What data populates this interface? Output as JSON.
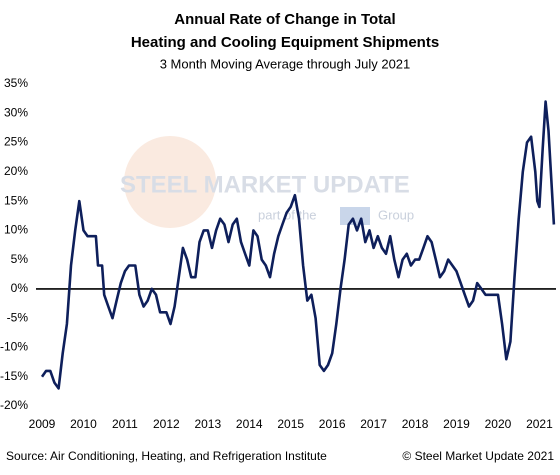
{
  "chart_data": {
    "type": "line",
    "title": [
      "Annual Rate of Change in Total",
      "Heating and Cooling Equipment Shipments"
    ],
    "subtitle": "3 Month Moving Average through July 2021",
    "source": "Source: Air Conditioning, Heating, and Refrigeration Institute",
    "copyright": "© Steel Market Update 2021",
    "watermark": {
      "brand": "STEEL MARKET UPDATE",
      "tagline_pre": "part of the",
      "tagline_post": "Group"
    },
    "color": "#0e1f5b",
    "zero_line": true,
    "grid": false,
    "x": [
      2009.0,
      2009.1,
      2009.2,
      2009.3,
      2009.4,
      2009.5,
      2009.6,
      2009.7,
      2009.8,
      2009.9,
      2010.0,
      2010.1,
      2010.2,
      2010.3,
      2010.35,
      2010.45,
      2010.5,
      2010.6,
      2010.7,
      2010.8,
      2010.9,
      2011.0,
      2011.1,
      2011.25,
      2011.35,
      2011.45,
      2011.55,
      2011.65,
      2011.75,
      2011.85,
      2012.0,
      2012.1,
      2012.2,
      2012.3,
      2012.4,
      2012.5,
      2012.6,
      2012.7,
      2012.8,
      2012.9,
      2013.0,
      2013.1,
      2013.2,
      2013.3,
      2013.4,
      2013.5,
      2013.6,
      2013.7,
      2013.8,
      2013.9,
      2014.0,
      2014.1,
      2014.2,
      2014.3,
      2014.4,
      2014.5,
      2014.6,
      2014.7,
      2014.8,
      2014.9,
      2015.0,
      2015.1,
      2015.2,
      2015.3,
      2015.4,
      2015.5,
      2015.6,
      2015.7,
      2015.8,
      2015.9,
      2016.0,
      2016.1,
      2016.2,
      2016.3,
      2016.4,
      2016.5,
      2016.6,
      2016.7,
      2016.8,
      2016.9,
      2017.0,
      2017.1,
      2017.2,
      2017.3,
      2017.4,
      2017.5,
      2017.6,
      2017.7,
      2017.8,
      2017.9,
      2018.0,
      2018.1,
      2018.2,
      2018.3,
      2018.4,
      2018.5,
      2018.6,
      2018.7,
      2018.8,
      2018.9,
      2019.0,
      2019.1,
      2019.2,
      2019.3,
      2019.4,
      2019.5,
      2019.6,
      2019.7,
      2019.8,
      2019.9,
      2020.0,
      2020.1,
      2020.2,
      2020.3,
      2020.4,
      2020.5,
      2020.6,
      2020.7,
      2020.8,
      2020.9,
      2020.95,
      2021.0,
      2021.08,
      2021.15,
      2021.22,
      2021.35
    ],
    "values": [
      -15,
      -14,
      -14,
      -16,
      -17,
      -11,
      -6,
      4,
      10,
      15,
      10,
      9,
      9,
      9,
      4,
      4,
      -1,
      -3,
      -5,
      -2,
      1,
      3,
      4,
      4,
      -1,
      -3,
      -2,
      0,
      -1,
      -4,
      -4,
      -6,
      -3,
      2,
      7,
      5,
      2,
      2,
      8,
      10,
      10,
      7,
      10,
      12,
      11,
      8,
      11,
      12,
      8,
      6,
      4,
      10,
      9,
      5,
      4,
      2,
      6,
      9,
      11,
      13,
      14,
      16,
      12,
      4,
      -2,
      -1,
      -5,
      -13,
      -14,
      -13,
      -11,
      -6,
      0,
      5,
      11,
      12,
      10,
      12,
      8,
      10,
      7,
      9,
      7,
      6,
      9,
      5,
      2,
      5,
      6,
      4,
      5,
      5,
      7,
      9,
      8,
      5,
      2,
      3,
      5,
      4,
      3,
      1,
      -1,
      -3,
      -2,
      1,
      0,
      -1,
      -1,
      -1,
      -1,
      -6,
      -12,
      -9,
      2,
      12,
      20,
      25,
      26,
      20,
      15,
      14,
      24,
      32,
      27,
      11
    ],
    "xlim": [
      2009.0,
      2021.4
    ],
    "xticks": [
      2009,
      2010,
      2011,
      2012,
      2013,
      2014,
      2015,
      2016,
      2017,
      2018,
      2019,
      2020,
      2021
    ],
    "ylim": [
      -20,
      35
    ],
    "yticks": [
      {
        "value": -20,
        "label": "-20%"
      },
      {
        "value": -15,
        "label": "-15%"
      },
      {
        "value": -10,
        "label": "-10%"
      },
      {
        "value": -5,
        "label": "-5%"
      },
      {
        "value": 0,
        "label": "0%"
      },
      {
        "value": 5,
        "label": "5%"
      },
      {
        "value": 10,
        "label": "10%"
      },
      {
        "value": 15,
        "label": "15%"
      },
      {
        "value": 20,
        "label": "20%"
      },
      {
        "value": 25,
        "label": "25%"
      },
      {
        "value": 30,
        "label": "30%"
      },
      {
        "value": 35,
        "label": "35%"
      }
    ]
  }
}
